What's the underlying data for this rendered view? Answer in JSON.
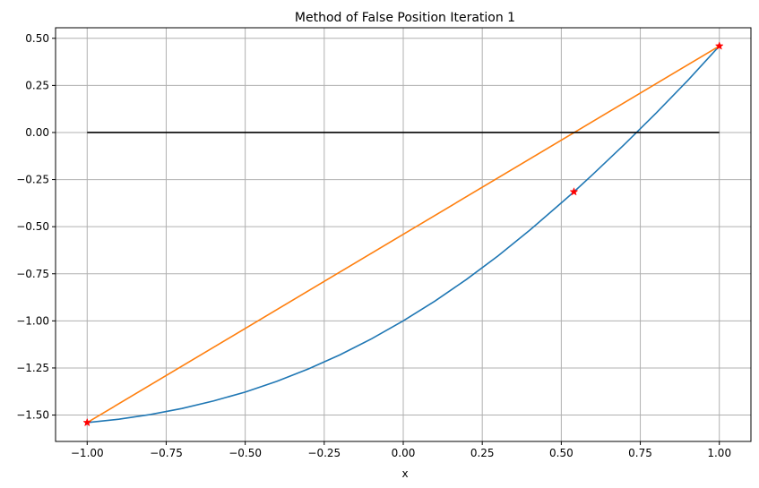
{
  "chart_data": {
    "type": "line",
    "title": "Method of False Position Iteration 1",
    "xlabel": "x",
    "ylabel": "",
    "xlim": [
      -1.1,
      1.1
    ],
    "ylim": [
      -1.64,
      0.556
    ],
    "grid": true,
    "xticks": [
      -1.0,
      -0.75,
      -0.5,
      -0.25,
      0.0,
      0.25,
      0.5,
      0.75,
      1.0
    ],
    "xtick_labels": [
      "−1.00",
      "−0.75",
      "−0.50",
      "−0.25",
      "0.00",
      "0.25",
      "0.50",
      "0.75",
      "1.00"
    ],
    "yticks": [
      0.5,
      0.25,
      0.0,
      -0.25,
      -0.5,
      -0.75,
      -1.0,
      -1.25,
      -1.5
    ],
    "ytick_labels": [
      "0.50",
      "0.25",
      "0.00",
      "−0.25",
      "−0.50",
      "−0.75",
      "−1.00",
      "−1.25",
      "−1.50"
    ],
    "series": [
      {
        "kind": "curve",
        "color": "#1f77b4",
        "x": [
          -1.0,
          -0.9,
          -0.8,
          -0.7,
          -0.6,
          -0.5,
          -0.4,
          -0.3,
          -0.2,
          -0.1,
          0.0,
          0.1,
          0.2,
          0.3,
          0.4,
          0.5,
          0.54,
          0.6,
          0.7,
          0.8,
          0.9,
          1.0
        ],
        "y": [
          -1.54,
          -1.522,
          -1.497,
          -1.465,
          -1.425,
          -1.378,
          -1.321,
          -1.255,
          -1.18,
          -1.095,
          -1.0,
          -0.895,
          -0.78,
          -0.655,
          -0.519,
          -0.374,
          -0.315,
          -0.222,
          -0.063,
          0.103,
          0.276,
          0.459
        ]
      },
      {
        "kind": "secant",
        "color": "#ff7f0e",
        "x": [
          -1.0,
          1.0
        ],
        "y": [
          -1.54,
          0.459
        ]
      },
      {
        "kind": "zero-line",
        "color": "#000000",
        "x": [
          -1.0,
          1.0
        ],
        "y": [
          0.0,
          0.0
        ]
      }
    ],
    "markers": {
      "color": "#ff0000",
      "symbol": "star",
      "points": [
        {
          "x": -1.0,
          "y": -1.54
        },
        {
          "x": 1.0,
          "y": 0.459
        },
        {
          "x": 0.54,
          "y": -0.315
        }
      ]
    }
  }
}
